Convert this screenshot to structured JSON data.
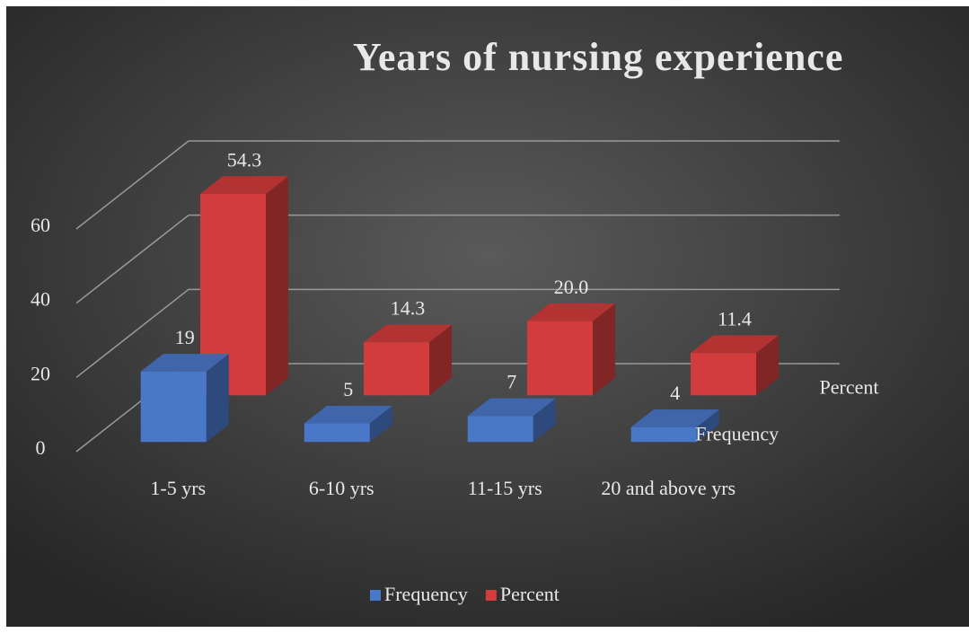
{
  "chart_data": {
    "type": "bar3d",
    "title": "Years of nursing experience",
    "categories": [
      "1-5 yrs",
      "6-10 yrs",
      "11-15 yrs",
      "20 and above yrs"
    ],
    "series": [
      {
        "name": "Frequency",
        "color": "#4a78c8",
        "values": [
          19,
          5,
          7,
          4
        ]
      },
      {
        "name": "Percent",
        "color": "#d23c3c",
        "values": [
          54.3,
          14.3,
          20.0,
          11.4
        ],
        "value_labels": [
          "54.3",
          "14.3",
          "20.0",
          "11.4"
        ]
      }
    ],
    "ylim": [
      0,
      60
    ],
    "yticks": [
      0,
      20,
      40,
      60
    ],
    "grid": true,
    "legend": "bottom"
  }
}
